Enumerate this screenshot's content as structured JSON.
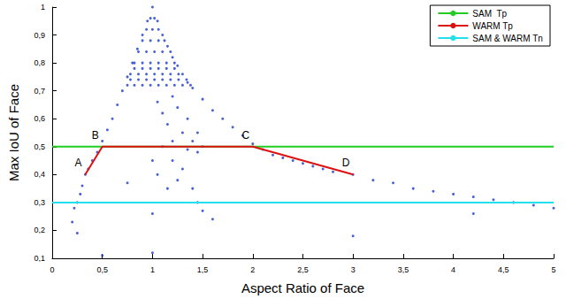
{
  "chart_data": {
    "type": "scatter",
    "xlabel": "Aspect Ratio of Face",
    "ylabel": "Max IoU of Face",
    "xlim": [
      0,
      5
    ],
    "xticks": [
      0,
      {
        "value": 0.5,
        "label": "0,5"
      },
      1,
      {
        "value": 1.5,
        "label": "1,5"
      },
      2,
      {
        "value": 2.5,
        "label": "2,5"
      },
      3,
      {
        "value": 3.5,
        "label": "3,5"
      },
      4,
      {
        "value": 4.5,
        "label": "4,5"
      },
      5
    ],
    "ylim": [
      0.1,
      1
    ],
    "yticks": [
      {
        "value": 0.1,
        "label": "0,1"
      },
      {
        "value": 0.2,
        "label": "0,2"
      },
      {
        "value": 0.3,
        "label": "0,3"
      },
      {
        "value": 0.4,
        "label": "0,4"
      },
      {
        "value": 0.5,
        "label": "0,5"
      },
      {
        "value": 0.6,
        "label": "0,6"
      },
      {
        "value": 0.7,
        "label": "0,7"
      },
      {
        "value": 0.8,
        "label": "0,8"
      },
      {
        "value": 0.9,
        "label": "0,9"
      },
      1
    ],
    "grid": false,
    "legend": "upper right",
    "series": [
      {
        "type": "scatter",
        "color": "#1a3acb",
        "marker": "circle",
        "x": [
          0.22,
          0.25,
          0.28,
          0.3,
          0.33,
          0.36,
          0.4,
          0.45,
          0.5,
          0.55,
          0.6,
          0.65,
          0.7,
          0.75,
          0.8,
          0.85,
          0.9,
          0.95,
          1.0,
          1.05,
          1.1,
          1.15,
          1.2,
          1.25,
          1.3,
          1.35,
          1.4,
          1.5,
          1.6,
          1.7,
          1.8,
          1.9,
          2.0,
          2.1,
          2.2,
          2.3,
          2.4,
          2.5,
          2.6,
          2.7,
          2.8,
          3.0,
          3.2,
          3.4,
          3.6,
          3.8,
          4.0,
          4.2,
          4.4,
          4.6,
          4.8,
          5.0,
          0.75,
          0.82,
          0.9,
          0.98,
          1.06,
          1.14,
          1.22,
          1.3,
          1.38,
          0.78,
          0.86,
          0.94,
          1.02,
          1.1,
          1.18,
          1.26,
          1.34,
          0.78,
          0.86,
          0.94,
          1.02,
          1.1,
          1.18,
          1.26,
          0.82,
          0.9,
          0.98,
          1.06,
          1.14,
          1.22,
          0.82,
          0.9,
          0.98,
          1.06,
          1.14,
          1.22,
          0.86,
          0.94,
          1.02,
          1.1,
          1.18,
          0.9,
          0.98,
          1.06,
          1.12,
          0.94,
          1.0,
          1.06,
          0.98,
          1.02,
          1.05,
          1.1,
          1.15,
          1.2,
          1.25,
          1.3,
          1.35,
          1.4,
          1.45,
          1.1,
          1.2,
          1.3,
          1.25,
          1.4,
          1.45,
          1.5,
          1.2,
          1.35,
          1.05,
          1.0,
          1.15,
          0.75,
          1.6,
          1.0,
          0.2,
          0.25,
          1.5,
          1.45,
          3.0,
          4.2,
          1.0,
          0.5
        ],
        "values": [
          0.28,
          0.3,
          0.33,
          0.36,
          0.4,
          0.42,
          0.45,
          0.48,
          0.52,
          0.56,
          0.6,
          0.65,
          0.7,
          0.75,
          0.8,
          0.85,
          0.9,
          0.95,
          1.0,
          0.95,
          0.9,
          0.86,
          0.82,
          0.79,
          0.76,
          0.73,
          0.71,
          0.67,
          0.63,
          0.6,
          0.57,
          0.54,
          0.51,
          0.49,
          0.47,
          0.46,
          0.45,
          0.44,
          0.43,
          0.42,
          0.41,
          0.4,
          0.38,
          0.37,
          0.35,
          0.34,
          0.33,
          0.32,
          0.31,
          0.3,
          0.29,
          0.28,
          0.72,
          0.72,
          0.72,
          0.72,
          0.72,
          0.72,
          0.72,
          0.72,
          0.72,
          0.74,
          0.74,
          0.74,
          0.74,
          0.74,
          0.74,
          0.74,
          0.74,
          0.76,
          0.76,
          0.76,
          0.76,
          0.76,
          0.76,
          0.76,
          0.78,
          0.78,
          0.78,
          0.78,
          0.78,
          0.78,
          0.8,
          0.8,
          0.8,
          0.8,
          0.8,
          0.8,
          0.84,
          0.84,
          0.84,
          0.84,
          0.84,
          0.88,
          0.88,
          0.88,
          0.88,
          0.92,
          0.92,
          0.92,
          0.96,
          0.96,
          0.66,
          0.62,
          0.58,
          0.68,
          0.64,
          0.55,
          0.6,
          0.52,
          0.48,
          0.5,
          0.45,
          0.42,
          0.38,
          0.35,
          0.3,
          0.27,
          0.52,
          0.49,
          0.4,
          0.45,
          0.35,
          0.37,
          0.24,
          0.26,
          0.23,
          0.19,
          0.5,
          0.55,
          0.18,
          0.26,
          0.12,
          0.11
        ]
      },
      {
        "name": "SAM  Tp",
        "type": "line",
        "color": "#22cc22",
        "line_style": "solid",
        "x": [
          0,
          5
        ],
        "values": [
          0.5,
          0.5
        ]
      },
      {
        "name": "WARM Tp",
        "type": "line",
        "color": "#dd1111",
        "line_style": "solid",
        "x": [
          0.33,
          0.5,
          2.0,
          3.0
        ],
        "values": [
          0.4,
          0.5,
          0.5,
          0.4
        ],
        "labels": [
          "A",
          "B",
          "C",
          "D"
        ]
      },
      {
        "name": "SAM & WARM Tn",
        "type": "line",
        "color": "#22e0ee",
        "line_style": "solid",
        "x": [
          0,
          5
        ],
        "values": [
          0.3,
          0.3
        ]
      }
    ]
  }
}
